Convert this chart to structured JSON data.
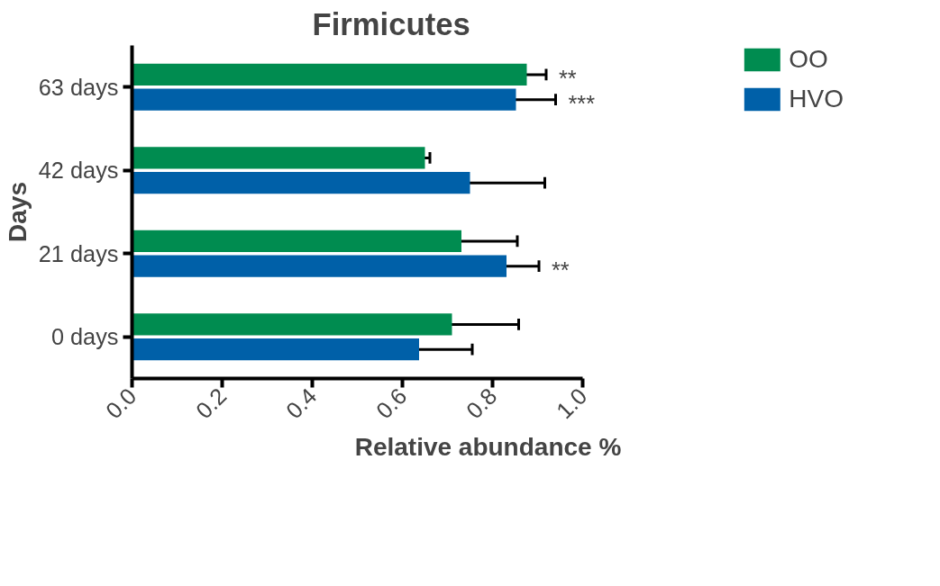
{
  "chart_data": {
    "type": "bar",
    "orientation": "horizontal",
    "title": "Firmicutes",
    "xlabel": "Relative abundance %",
    "ylabel": "Days",
    "categories": [
      "63 days",
      "42 days",
      "21 days",
      "0 days"
    ],
    "series": [
      {
        "name": "HVO",
        "color": "#0060a8",
        "values": [
          0.852,
          0.75,
          0.831,
          0.637
        ],
        "errors": [
          0.088,
          0.166,
          0.072,
          0.118
        ],
        "value_labels": [
          "***",
          null,
          "**",
          null
        ]
      },
      {
        "name": "OO",
        "color": "#008c50",
        "values": [
          0.876,
          0.65,
          0.731,
          0.71
        ],
        "errors": [
          0.043,
          0.011,
          0.124,
          0.148
        ],
        "value_labels": [
          "**",
          null,
          null,
          null
        ]
      }
    ],
    "xlim": [
      0,
      1
    ],
    "xticks": [
      {
        "value": 0,
        "label": "0.0"
      },
      {
        "value": 0.2,
        "label": "0.2"
      },
      {
        "value": 0.4,
        "label": "0.4"
      },
      {
        "value": 0.6,
        "label": "0.6"
      },
      {
        "value": 0.8,
        "label": "0.8"
      },
      {
        "value": 1,
        "label": "1.0"
      }
    ],
    "grid": false,
    "legend": "top right"
  }
}
